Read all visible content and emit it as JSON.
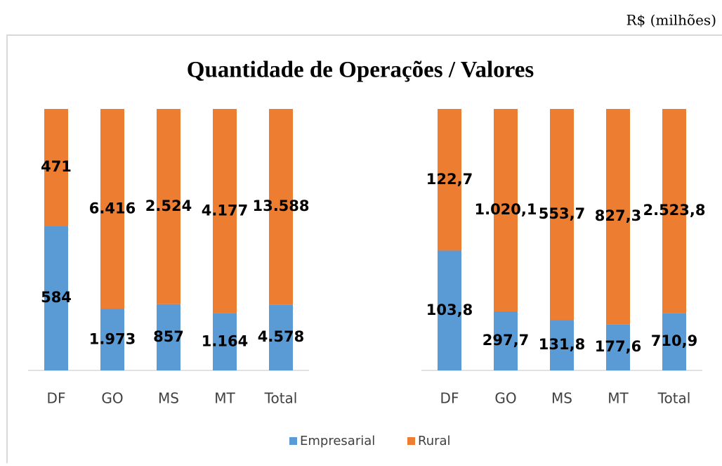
{
  "chart_data": {
    "type": "bar",
    "stacking": "percent",
    "title": "Quantidade de Operações / Valores",
    "subtitle": "R$ (milhões)",
    "series": [
      {
        "name": "Empresarial",
        "color": "#5b9bd5"
      },
      {
        "name": "Rural",
        "color": "#ed7d31"
      }
    ],
    "panels": [
      {
        "categories": [
          "DF",
          "GO",
          "MS",
          "MT",
          "Total"
        ],
        "values": [
          [
            584,
            1973,
            857,
            1164,
            4578
          ],
          [
            471,
            6416,
            2524,
            4177,
            13588
          ]
        ],
        "value_labels": [
          [
            "584",
            "1.973",
            "857",
            "1.164",
            "4.578"
          ],
          [
            "471",
            "6.416",
            "2.524",
            "4.177",
            "13.588"
          ]
        ]
      },
      {
        "categories": [
          "DF",
          "GO",
          "MS",
          "MT",
          "Total"
        ],
        "values": [
          [
            103.8,
            297.7,
            131.8,
            177.6,
            710.9
          ],
          [
            122.7,
            1020.1,
            553.7,
            827.3,
            2523.8
          ]
        ],
        "value_labels": [
          [
            "103,8",
            "297,7",
            "131,8",
            "177,6",
            "710,9"
          ],
          [
            "122,7",
            "1.020,1",
            "553,7",
            "827,3",
            "2.523,8"
          ]
        ]
      }
    ]
  }
}
